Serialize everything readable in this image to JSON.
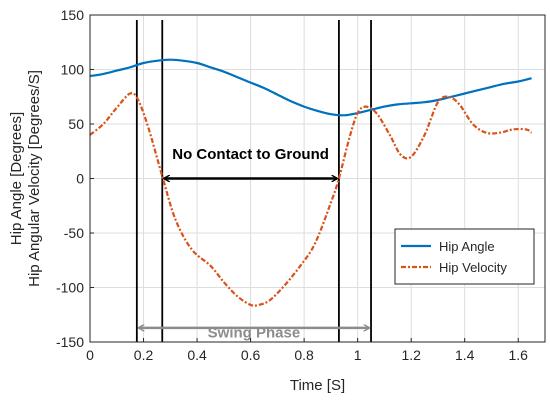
{
  "chart_data": {
    "type": "line",
    "xlabel": "Time [S]",
    "ylabel_lines": [
      "Hip Angle [Degrees]",
      "Hip Angular Velocity [Degrees/S]"
    ],
    "xlim": [
      0,
      1.7
    ],
    "ylim": [
      -150,
      150
    ],
    "xticks": [
      0,
      0.2,
      0.4,
      0.6,
      0.8,
      1,
      1.2,
      1.4,
      1.6
    ],
    "xtick_labels": [
      "0",
      "0.2",
      "0.4",
      "0.6",
      "0.8",
      "1",
      "1.2",
      "1.4",
      "1.6"
    ],
    "yticks": [
      -150,
      -100,
      -50,
      0,
      50,
      100,
      150
    ],
    "ytick_labels": [
      "-150",
      "-100",
      "-50",
      "0",
      "50",
      "100",
      "150"
    ],
    "grid": true,
    "legend_position": "lower-right",
    "series": [
      {
        "name": "Hip Angle",
        "color": "#0072bd",
        "style": "solid",
        "x": [
          0,
          0.05,
          0.1,
          0.15,
          0.2,
          0.25,
          0.3,
          0.35,
          0.4,
          0.45,
          0.5,
          0.55,
          0.6,
          0.65,
          0.7,
          0.75,
          0.8,
          0.85,
          0.9,
          0.95,
          1.0,
          1.05,
          1.1,
          1.15,
          1.2,
          1.25,
          1.3,
          1.35,
          1.4,
          1.45,
          1.5,
          1.55,
          1.6,
          1.65
        ],
        "y": [
          94,
          96,
          99,
          102,
          106,
          108,
          109,
          108,
          106,
          102,
          98,
          93,
          88,
          83,
          77,
          71,
          66,
          62,
          59,
          58,
          60,
          63,
          66,
          68,
          69,
          70,
          72,
          75,
          78,
          81,
          84,
          87,
          89,
          92
        ]
      },
      {
        "name": "Hip Velocity",
        "color": "#d95319",
        "style": "dashed",
        "x": [
          0,
          0.05,
          0.1,
          0.15,
          0.18,
          0.22,
          0.27,
          0.32,
          0.38,
          0.45,
          0.5,
          0.55,
          0.6,
          0.63,
          0.67,
          0.72,
          0.78,
          0.84,
          0.9,
          0.93,
          0.97,
          1.0,
          1.03,
          1.07,
          1.12,
          1.16,
          1.2,
          1.25,
          1.3,
          1.34,
          1.38,
          1.43,
          1.48,
          1.53,
          1.58,
          1.63,
          1.65
        ],
        "y": [
          40,
          50,
          65,
          78,
          72,
          45,
          2,
          -38,
          -65,
          -80,
          -95,
          -108,
          -116,
          -116,
          -112,
          -100,
          -82,
          -60,
          -22,
          0,
          38,
          60,
          66,
          60,
          40,
          22,
          20,
          40,
          70,
          75,
          68,
          50,
          42,
          42,
          45,
          45,
          42
        ]
      }
    ],
    "vertical_lines_x": [
      0.175,
      0.27,
      0.93,
      1.05
    ],
    "annotations": {
      "no_contact": {
        "text": "No Contact to Ground",
        "x_start": 0.27,
        "x_end": 0.93,
        "y": 0,
        "label_y": 18
      },
      "swing_phase": {
        "text": "Swing Phase",
        "x_start": 0.175,
        "x_end": 1.05,
        "y": -137,
        "label_y": -146
      }
    }
  }
}
